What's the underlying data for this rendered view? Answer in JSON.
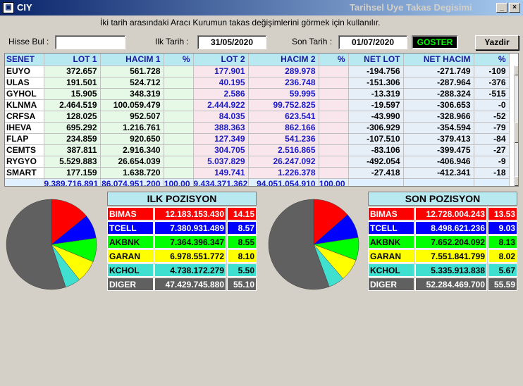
{
  "window": {
    "app_title": "CIY",
    "title": "Tarihsel Uye Takas Degisimi"
  },
  "hint": "İki tarih arasındaki  Aracı Kurumun takas değişimlerini görmek için kullanılır.",
  "form": {
    "hisse_label": "Hisse Bul :",
    "hisse_value": "",
    "ilk_label": "Ilk Tarih :",
    "ilk_value": "31/05/2020",
    "son_label": "Son Tarih :",
    "son_value": "01/07/2020",
    "goster": "GOSTER",
    "yazdir": "Yazdir"
  },
  "grid": {
    "headers": [
      "SENET",
      "LOT 1",
      "HACIM 1",
      "%",
      "LOT 2",
      "HACIM 2",
      "%",
      "NET LOT",
      "NET HACIM",
      "%"
    ],
    "rows": [
      [
        "EUYO",
        "372.657",
        "561.728",
        "",
        "177.901",
        "289.978",
        "",
        "-194.756",
        "-271.749",
        "-109"
      ],
      [
        "ULAS",
        "191.501",
        "524.712",
        "",
        "40.195",
        "236.748",
        "",
        "-151.306",
        "-287.964",
        "-376"
      ],
      [
        "GYHOL",
        "15.905",
        "348.319",
        "",
        "2.586",
        "59.995",
        "",
        "-13.319",
        "-288.324",
        "-515"
      ],
      [
        "KLNMA",
        "2.464.519",
        "100.059.479",
        "",
        "2.444.922",
        "99.752.825",
        "",
        "-19.597",
        "-306.653",
        "-0"
      ],
      [
        "CRFSA",
        "128.025",
        "952.507",
        "",
        "84.035",
        "623.541",
        "",
        "-43.990",
        "-328.966",
        "-52"
      ],
      [
        "IHEVA",
        "695.292",
        "1.216.761",
        "",
        "388.363",
        "862.166",
        "",
        "-306.929",
        "-354.594",
        "-79"
      ],
      [
        "FLAP",
        "234.859",
        "920.650",
        "",
        "127.349",
        "541.236",
        "",
        "-107.510",
        "-379.413",
        "-84"
      ],
      [
        "CEMTS",
        "387.811",
        "2.916.340",
        "",
        "304.705",
        "2.516.865",
        "",
        "-83.106",
        "-399.475",
        "-27"
      ],
      [
        "RYGYO",
        "5.529.883",
        "26.654.039",
        "",
        "5.037.829",
        "26.247.092",
        "",
        "-492.054",
        "-406.946",
        "-9"
      ],
      [
        "SMART",
        "177.159",
        "1.638.720",
        "",
        "149.741",
        "1.226.378",
        "",
        "-27.418",
        "-412.341",
        "-18"
      ]
    ],
    "totals": [
      "",
      "9.389.716.891",
      "86.074.951.200",
      "100,00",
      "9.434.371.362",
      "94.051.054.910",
      "100,00",
      "",
      "",
      ""
    ]
  },
  "ilk": {
    "title": "ILK POZISYON",
    "rows": [
      {
        "name": "BIMAS",
        "value": "12.183.153.430",
        "pct": "14.15",
        "bg": "#ff0000",
        "fg": "#ffffff"
      },
      {
        "name": "TCELL",
        "value": "7.380.931.489",
        "pct": "8.57",
        "bg": "#0000ff",
        "fg": "#ffffff"
      },
      {
        "name": "AKBNK",
        "value": "7.364.396.347",
        "pct": "8.55",
        "bg": "#00ff00",
        "fg": "#000000"
      },
      {
        "name": "GARAN",
        "value": "6.978.551.772",
        "pct": "8.10",
        "bg": "#ffff00",
        "fg": "#000000"
      },
      {
        "name": "KCHOL",
        "value": "4.738.172.279",
        "pct": "5.50",
        "bg": "#40e0d0",
        "fg": "#000000"
      },
      {
        "name": "DIGER",
        "value": "47.429.745.880",
        "pct": "55.10",
        "bg": "#606060",
        "fg": "#ffffff"
      }
    ]
  },
  "son": {
    "title": "SON POZISYON",
    "rows": [
      {
        "name": "BIMAS",
        "value": "12.728.004.243",
        "pct": "13.53",
        "bg": "#ff0000",
        "fg": "#ffffff"
      },
      {
        "name": "TCELL",
        "value": "8.498.621.236",
        "pct": "9.03",
        "bg": "#0000ff",
        "fg": "#ffffff"
      },
      {
        "name": "AKBNK",
        "value": "7.652.204.092",
        "pct": "8.13",
        "bg": "#00ff00",
        "fg": "#000000"
      },
      {
        "name": "GARAN",
        "value": "7.551.841.799",
        "pct": "8.02",
        "bg": "#ffff00",
        "fg": "#000000"
      },
      {
        "name": "KCHOL",
        "value": "5.335.913.838",
        "pct": "5.67",
        "bg": "#40e0d0",
        "fg": "#000000"
      },
      {
        "name": "DIGER",
        "value": "52.284.469.700",
        "pct": "55.59",
        "bg": "#606060",
        "fg": "#ffffff"
      }
    ]
  }
}
